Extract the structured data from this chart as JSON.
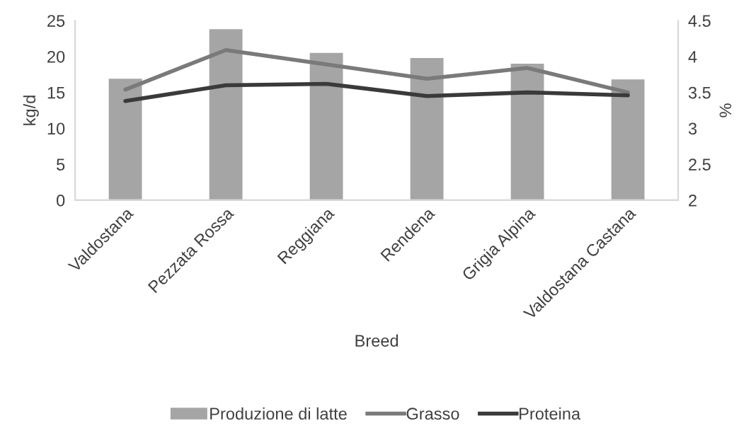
{
  "chart_data": {
    "type": "bar",
    "xlabel": "Breed",
    "ylabel": "kg/d",
    "y2label": "%",
    "categories": [
      "Valdostana",
      "Pezzata Rossa",
      "Reggiana",
      "Rendena",
      "Grigia Alpina",
      "Valdostana Castana"
    ],
    "series": [
      {
        "name": "Produzione di latte",
        "color": "#a5a5a5",
        "values": [
          16.9,
          23.8,
          20.5,
          19.8,
          19.0,
          16.8
        ]
      },
      {
        "name": "Grasso",
        "type": "line",
        "axis": "y2",
        "color": "#7a7a7a",
        "values": [
          3.54,
          4.09,
          3.89,
          3.69,
          3.84,
          3.5
        ]
      },
      {
        "name": "Proteina",
        "type": "line",
        "axis": "y2",
        "color": "#3a3a3a",
        "values": [
          3.38,
          3.6,
          3.62,
          3.45,
          3.5,
          3.46
        ]
      }
    ],
    "ylim": [
      0,
      25
    ],
    "yticks": [
      0,
      5,
      10,
      15,
      20,
      25
    ],
    "y2lim": [
      2,
      4.5
    ],
    "y2ticks": [
      2,
      2.5,
      3,
      3.5,
      4,
      4.5
    ],
    "grid": false,
    "legend": "bottom"
  }
}
